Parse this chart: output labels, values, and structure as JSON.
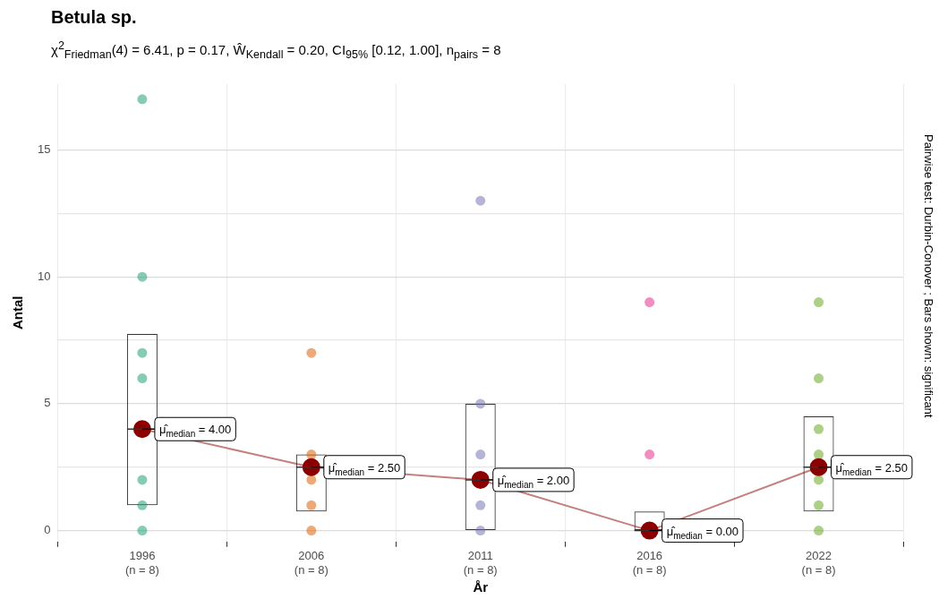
{
  "chart_data": {
    "type": "box",
    "title": "Betula sp.",
    "subtitle": "χ$^{2}$$_{Friedman}$(4) = 6.41, p = 0.17, Ŵ$_{Kendall}$ = 0.20, CI$_{95%}$ [0.12, 1.00], n$_{pairs}$ = 8",
    "xlabel": "År",
    "ylabel": "Antal",
    "categories": [
      "1996\n(n = 8)",
      "2006\n(n = 8)",
      "2011\n(n = 8)",
      "2016\n(n = 8)",
      "2022\n(n = 8)"
    ],
    "series": [
      {
        "type": "box",
        "color": "#333333",
        "boxes": [
          {
            "low": 1,
            "q1": 1,
            "median": 4,
            "q3": 7.75,
            "high": 7.75
          },
          {
            "low": 0.75,
            "q1": 0.75,
            "median": 2.5,
            "q3": 3,
            "high": 3
          },
          {
            "low": 0,
            "q1": 0,
            "median": 2,
            "q3": 5,
            "high": 5
          },
          {
            "low": 0,
            "q1": 0,
            "median": 0,
            "q3": 0.75,
            "high": 0.75
          },
          {
            "low": 0.75,
            "q1": 0.75,
            "median": 2.5,
            "q3": 4.5,
            "high": 4.5
          }
        ]
      },
      {
        "type": "scatter",
        "x": [
          "1996\n(n = 8)",
          "1996\n(n = 8)",
          "1996\n(n = 8)",
          "1996\n(n = 8)",
          "1996\n(n = 8)",
          "1996\n(n = 8)",
          "1996\n(n = 8)",
          "2006\n(n = 8)",
          "2006\n(n = 8)",
          "2006\n(n = 8)",
          "2006\n(n = 8)",
          "2006\n(n = 8)",
          "2011\n(n = 8)",
          "2011\n(n = 8)",
          "2011\n(n = 8)",
          "2011\n(n = 8)",
          "2011\n(n = 8)",
          "2016\n(n = 8)",
          "2016\n(n = 8)",
          "2016\n(n = 8)",
          "2022\n(n = 8)",
          "2022\n(n = 8)",
          "2022\n(n = 8)",
          "2022\n(n = 8)",
          "2022\n(n = 8)",
          "2022\n(n = 8)",
          "2022\n(n = 8)"
        ],
        "values": [
          17,
          10,
          7,
          6,
          2,
          1,
          0,
          7,
          3,
          2,
          1,
          0,
          13,
          5,
          3,
          1,
          0,
          9,
          3,
          null,
          9,
          6,
          4,
          3,
          2,
          1,
          0
        ],
        "colors": [
          "#1b9e77",
          "#1b9e77",
          "#1b9e77",
          "#1b9e77",
          "#1b9e77",
          "#1b9e77",
          "#1b9e77",
          "#d95f02",
          "#d95f02",
          "#d95f02",
          "#d95f02",
          "#d95f02",
          "#7570b3",
          "#7570b3",
          "#7570b3",
          "#7570b3",
          "#7570b3",
          "#e7298a",
          "#e7298a",
          "#e7298a",
          "#66a61e",
          "#66a61e",
          "#66a61e",
          "#66a61e",
          "#66a61e",
          "#66a61e",
          "#66a61e"
        ]
      },
      {
        "type": "line",
        "color": "#8b0000",
        "values": [
          4,
          2.5,
          2,
          0,
          2.5
        ]
      }
    ],
    "marker": "circle",
    "ylim": [
      -0.43,
      17.6
    ],
    "yticks": [
      0,
      {
        "value": 2.5,
        "label": null
      },
      5,
      {
        "value": 7.5,
        "label": null
      },
      10,
      {
        "value": 12.5,
        "label": null
      },
      15
    ],
    "grid": true,
    "annotations": [
      {
        "text": "μ̂$_{median}$ = 4.00",
        "x": "1996\n(n = 8)",
        "y": 4
      },
      {
        "text": "μ̂$_{median}$ = 2.50",
        "x": "2006\n(n = 8)",
        "y": 2.5
      },
      {
        "text": "μ̂$_{median}$ = 2.00",
        "x": "2011\n(n = 8)",
        "y": 2
      },
      {
        "text": "μ̂$_{median}$ = 0.00",
        "x": "2016\n(n = 8)",
        "y": 0
      },
      {
        "text": "μ̂$_{median}$ = 2.50",
        "x": "2022\n(n = 8)",
        "y": 2.5
      },
      "Pairwise test: Durbin-Conover ; Bars shown: significant"
    ]
  }
}
